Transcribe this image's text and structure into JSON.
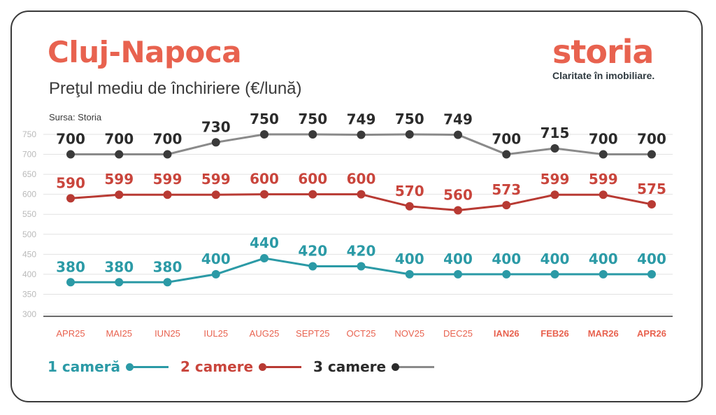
{
  "header": {
    "title": "Cluj-Napoca",
    "subtitle": "Preţul mediu de închiriere (€/lună)",
    "source": "Sursa: Storia"
  },
  "brand": {
    "name": "storia",
    "tagline": "Claritate în imobiliare."
  },
  "legend": [
    {
      "label": "1 cameră",
      "color": "#2b9aa6"
    },
    {
      "label": "2 camere",
      "color": "#b83a33"
    },
    {
      "label": "3 camere",
      "color": "#2b2b2b"
    }
  ],
  "chart_data": {
    "type": "line",
    "categories": [
      "APR25",
      "MAI25",
      "IUN25",
      "IUL25",
      "AUG25",
      "SEPT25",
      "OCT25",
      "NOV25",
      "DEC25",
      "IAN26",
      "FEB26",
      "MAR26",
      "APR26"
    ],
    "ylim": [
      300,
      750
    ],
    "yticks": [
      300,
      350,
      400,
      450,
      500,
      550,
      600,
      650,
      700,
      750
    ],
    "grid": true,
    "legend_position": "bottom-left",
    "series": [
      {
        "name": "1 cameră",
        "color": "#2b9aa6",
        "label_color": "#2b9aa6",
        "values": [
          380,
          380,
          380,
          400,
          440,
          420,
          420,
          400,
          400,
          400,
          400,
          400,
          400
        ]
      },
      {
        "name": "2 camere",
        "color": "#b83a33",
        "label_color": "#c9453c",
        "values": [
          590,
          599,
          599,
          599,
          600,
          600,
          600,
          570,
          560,
          573,
          599,
          599,
          575
        ]
      },
      {
        "name": "3 camere",
        "color": "#8a8a8a",
        "label_color": "#2b2b2b",
        "values": [
          700,
          700,
          700,
          730,
          750,
          750,
          749,
          750,
          749,
          700,
          715,
          700,
          700
        ]
      }
    ],
    "bold_categories": [
      "IAN26",
      "FEB26",
      "MAR26",
      "APR26"
    ]
  }
}
